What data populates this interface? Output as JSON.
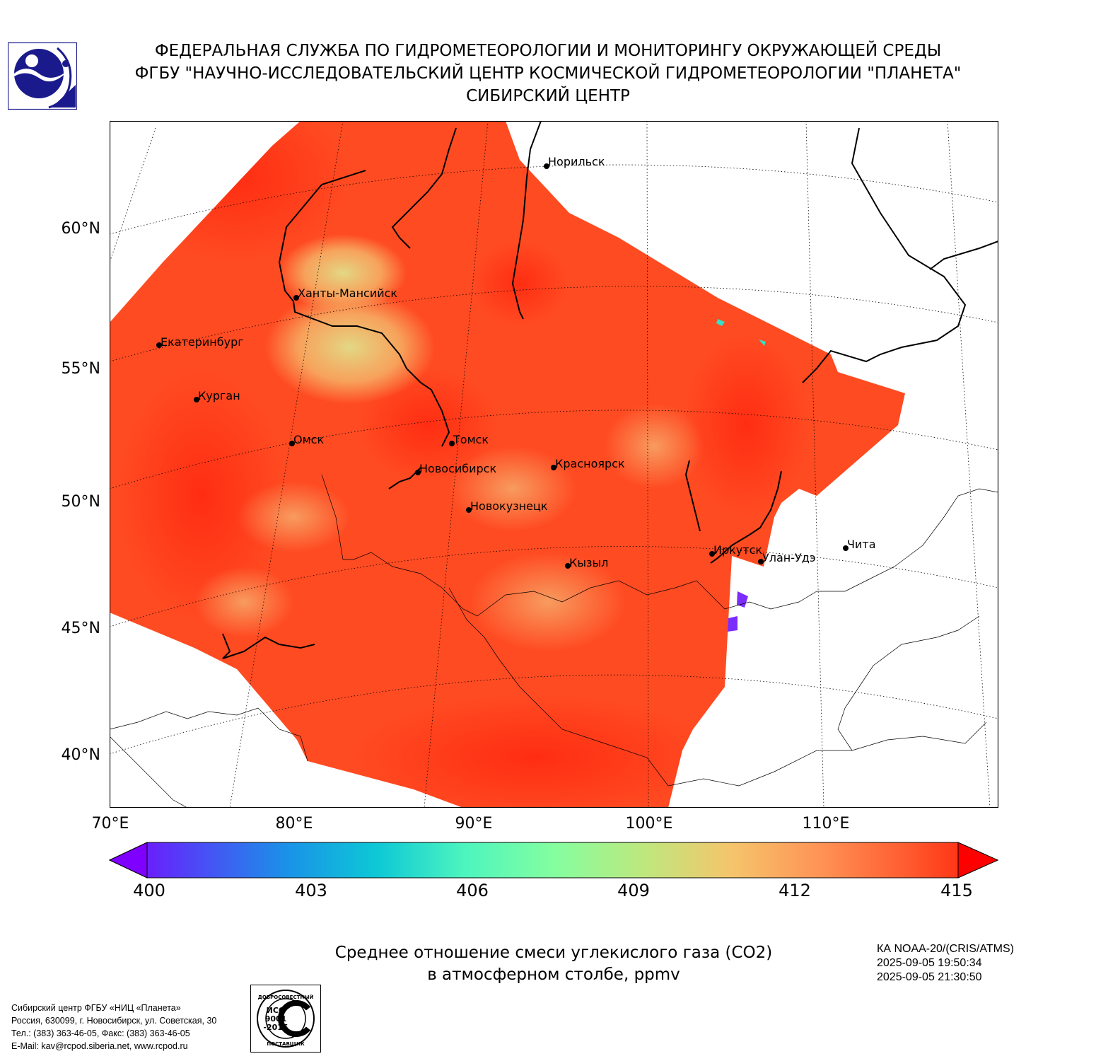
{
  "header": {
    "line1": "ФЕДЕРАЛЬНАЯ СЛУЖБА ПО ГИДРОМЕТЕОРОЛОГИИ И МОНИТОРИНГУ ОКРУЖАЮЩЕЙ СРЕДЫ",
    "line2": "ФГБУ \"НАУЧНО-ИССЛЕДОВАТЕЛЬСКИЙ ЦЕНТР КОСМИЧЕСКОЙ ГИДРОМЕТЕОРОЛОГИИ \"ПЛАНЕТА\"",
    "line3": "СИБИРСКИЙ ЦЕНТР"
  },
  "map": {
    "lat_labels": [
      "60°N",
      "55°N",
      "50°N",
      "45°N",
      "40°N"
    ],
    "lon_labels": [
      "70°E",
      "80°E",
      "90°E",
      "100°E",
      "110°E"
    ],
    "cities": [
      {
        "name": "Норильск"
      },
      {
        "name": "Ханты-Мансийск"
      },
      {
        "name": "Екатеринбург"
      },
      {
        "name": "Курган"
      },
      {
        "name": "Омск"
      },
      {
        "name": "Томск"
      },
      {
        "name": "Новосибирск"
      },
      {
        "name": "Красноярск"
      },
      {
        "name": "Новокузнецк"
      },
      {
        "name": "Кызыл"
      },
      {
        "name": "Иркутск"
      },
      {
        "name": "Улан-Удэ"
      },
      {
        "name": "Чита"
      }
    ]
  },
  "colorbar": {
    "ticks": [
      "400",
      "403",
      "406",
      "409",
      "412",
      "415"
    ],
    "min": 400,
    "max": 415,
    "extend": "both",
    "colormap": "rainbow"
  },
  "caption": {
    "line1": "Среднее отношение смеси углекислого газа (CO2)",
    "line2": "в атмосферном столбе, ppmv"
  },
  "satellite": {
    "line1": "КА NOAA-20/(CRIS/ATMS)",
    "line2": "2025-09-05 19:50:34",
    "line3": "2025-09-05 21:30:50"
  },
  "footer": {
    "line1": "Сибирский центр ФГБУ «НИЦ «Планета»",
    "line2": "Россия, 630099, г. Новосибирск, ул. Советская, 30",
    "line3": "Тел.: (383) 363-46-05, Факс: (383) 363-46-05",
    "line4": "E-Mail: kav@rcpod.siberia.net, www.rcpod.ru"
  },
  "certificate": {
    "top_text": "ДОБРОСОВЕСТНЫЙ",
    "center_text1": "ИСО",
    "center_text2": "9001",
    "center_text3": "-2015",
    "bottom_text": "ПОСТАВЩИК"
  }
}
